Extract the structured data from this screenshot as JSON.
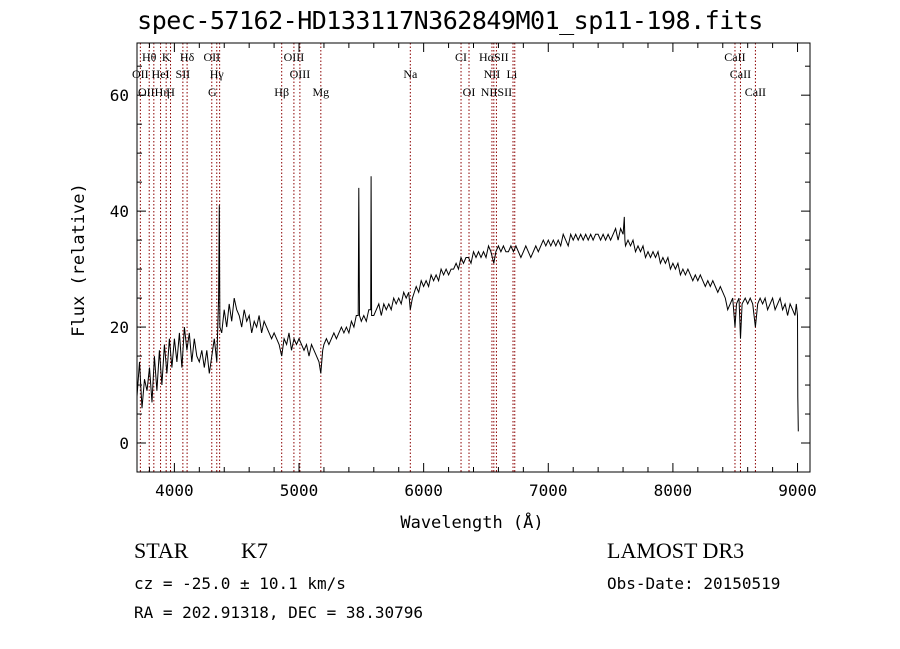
{
  "title": "spec-57162-HD133117N362849M01_sp11-198.fits",
  "chart_data": {
    "type": "line",
    "title": "spec-57162-HD133117N362849M01_sp11-198.fits",
    "xlabel": "Wavelength (Å)",
    "ylabel": "Flux (relative)",
    "xlim": [
      3700,
      9100
    ],
    "ylim": [
      -5,
      69
    ],
    "x_ticks": [
      4000,
      5000,
      6000,
      7000,
      8000,
      9000
    ],
    "y_ticks": [
      0,
      20,
      40,
      60
    ],
    "x_minor_step": 200,
    "y_minor_step": 5,
    "series": [
      {
        "name": "spectrum",
        "points": [
          [
            3700,
            8
          ],
          [
            3720,
            14
          ],
          [
            3740,
            6
          ],
          [
            3760,
            11
          ],
          [
            3780,
            9
          ],
          [
            3800,
            13
          ],
          [
            3820,
            7
          ],
          [
            3840,
            15
          ],
          [
            3860,
            9
          ],
          [
            3880,
            16
          ],
          [
            3900,
            10
          ],
          [
            3920,
            17
          ],
          [
            3940,
            12
          ],
          [
            3960,
            18
          ],
          [
            3980,
            13
          ],
          [
            4000,
            18
          ],
          [
            4020,
            14
          ],
          [
            4040,
            19
          ],
          [
            4060,
            13
          ],
          [
            4080,
            20
          ],
          [
            4100,
            16
          ],
          [
            4120,
            19
          ],
          [
            4140,
            14
          ],
          [
            4160,
            18
          ],
          [
            4180,
            15
          ],
          [
            4200,
            14
          ],
          [
            4220,
            16
          ],
          [
            4240,
            13
          ],
          [
            4260,
            16
          ],
          [
            4280,
            12
          ],
          [
            4300,
            15
          ],
          [
            4320,
            18
          ],
          [
            4340,
            14
          ],
          [
            4355,
            25
          ],
          [
            4360,
            41
          ],
          [
            4365,
            20
          ],
          [
            4380,
            19
          ],
          [
            4400,
            23
          ],
          [
            4420,
            20
          ],
          [
            4440,
            24
          ],
          [
            4460,
            21
          ],
          [
            4480,
            25
          ],
          [
            4500,
            23
          ],
          [
            4520,
            22
          ],
          [
            4540,
            20
          ],
          [
            4560,
            23
          ],
          [
            4580,
            21
          ],
          [
            4600,
            22
          ],
          [
            4620,
            19
          ],
          [
            4640,
            21
          ],
          [
            4660,
            20
          ],
          [
            4680,
            22
          ],
          [
            4700,
            19
          ],
          [
            4720,
            21
          ],
          [
            4740,
            20
          ],
          [
            4760,
            19
          ],
          [
            4780,
            18
          ],
          [
            4800,
            19
          ],
          [
            4820,
            18
          ],
          [
            4840,
            17
          ],
          [
            4861,
            15
          ],
          [
            4880,
            18
          ],
          [
            4900,
            17
          ],
          [
            4920,
            19
          ],
          [
            4940,
            16
          ],
          [
            4960,
            18
          ],
          [
            4980,
            17
          ],
          [
            5000,
            18
          ],
          [
            5020,
            17
          ],
          [
            5040,
            16
          ],
          [
            5060,
            17
          ],
          [
            5080,
            15
          ],
          [
            5100,
            17
          ],
          [
            5120,
            16
          ],
          [
            5140,
            15
          ],
          [
            5160,
            14
          ],
          [
            5175,
            12
          ],
          [
            5190,
            16
          ],
          [
            5200,
            17
          ],
          [
            5220,
            18
          ],
          [
            5240,
            17
          ],
          [
            5260,
            18
          ],
          [
            5280,
            19
          ],
          [
            5300,
            18
          ],
          [
            5320,
            19
          ],
          [
            5340,
            20
          ],
          [
            5360,
            19
          ],
          [
            5380,
            20
          ],
          [
            5400,
            19
          ],
          [
            5420,
            21
          ],
          [
            5440,
            20
          ],
          [
            5460,
            22
          ],
          [
            5475,
            22
          ],
          [
            5480,
            44
          ],
          [
            5485,
            22
          ],
          [
            5500,
            21
          ],
          [
            5520,
            22
          ],
          [
            5540,
            21
          ],
          [
            5560,
            23
          ],
          [
            5575,
            23
          ],
          [
            5578,
            46
          ],
          [
            5582,
            22
          ],
          [
            5600,
            22
          ],
          [
            5620,
            23
          ],
          [
            5640,
            24
          ],
          [
            5660,
            22
          ],
          [
            5680,
            24
          ],
          [
            5700,
            23
          ],
          [
            5720,
            24
          ],
          [
            5740,
            23
          ],
          [
            5760,
            25
          ],
          [
            5780,
            24
          ],
          [
            5800,
            25
          ],
          [
            5820,
            24
          ],
          [
            5840,
            26
          ],
          [
            5860,
            25
          ],
          [
            5880,
            26
          ],
          [
            5893,
            23
          ],
          [
            5910,
            25
          ],
          [
            5940,
            27
          ],
          [
            5960,
            26
          ],
          [
            5980,
            28
          ],
          [
            6000,
            27
          ],
          [
            6020,
            28
          ],
          [
            6040,
            27
          ],
          [
            6060,
            29
          ],
          [
            6080,
            28
          ],
          [
            6100,
            29
          ],
          [
            6120,
            28
          ],
          [
            6140,
            30
          ],
          [
            6160,
            29
          ],
          [
            6180,
            30
          ],
          [
            6200,
            29
          ],
          [
            6220,
            30
          ],
          [
            6240,
            30
          ],
          [
            6260,
            31
          ],
          [
            6280,
            30
          ],
          [
            6300,
            32
          ],
          [
            6320,
            31
          ],
          [
            6340,
            32
          ],
          [
            6360,
            32
          ],
          [
            6380,
            31
          ],
          [
            6400,
            33
          ],
          [
            6420,
            32
          ],
          [
            6440,
            33
          ],
          [
            6460,
            32
          ],
          [
            6480,
            33
          ],
          [
            6500,
            32
          ],
          [
            6520,
            34
          ],
          [
            6540,
            33
          ],
          [
            6563,
            31
          ],
          [
            6580,
            33
          ],
          [
            6600,
            34
          ],
          [
            6620,
            33
          ],
          [
            6640,
            34
          ],
          [
            6660,
            33
          ],
          [
            6680,
            33
          ],
          [
            6700,
            34
          ],
          [
            6720,
            33
          ],
          [
            6740,
            34
          ],
          [
            6760,
            33
          ],
          [
            6780,
            32
          ],
          [
            6800,
            33
          ],
          [
            6820,
            34
          ],
          [
            6840,
            33
          ],
          [
            6860,
            32
          ],
          [
            6880,
            33
          ],
          [
            6900,
            34
          ],
          [
            6920,
            33
          ],
          [
            6940,
            34
          ],
          [
            6960,
            35
          ],
          [
            6980,
            34
          ],
          [
            7000,
            35
          ],
          [
            7020,
            34
          ],
          [
            7040,
            35
          ],
          [
            7060,
            34
          ],
          [
            7080,
            35
          ],
          [
            7100,
            34
          ],
          [
            7120,
            36
          ],
          [
            7140,
            35
          ],
          [
            7160,
            34
          ],
          [
            7180,
            36
          ],
          [
            7200,
            35
          ],
          [
            7220,
            36
          ],
          [
            7240,
            35
          ],
          [
            7260,
            36
          ],
          [
            7280,
            35
          ],
          [
            7300,
            36
          ],
          [
            7320,
            35
          ],
          [
            7340,
            36
          ],
          [
            7360,
            35
          ],
          [
            7380,
            36
          ],
          [
            7400,
            36
          ],
          [
            7420,
            35
          ],
          [
            7440,
            36
          ],
          [
            7460,
            35
          ],
          [
            7480,
            36
          ],
          [
            7500,
            35
          ],
          [
            7520,
            36
          ],
          [
            7540,
            37
          ],
          [
            7560,
            35
          ],
          [
            7580,
            37
          ],
          [
            7600,
            36
          ],
          [
            7610,
            39
          ],
          [
            7615,
            35
          ],
          [
            7620,
            34
          ],
          [
            7640,
            35
          ],
          [
            7660,
            34
          ],
          [
            7680,
            35
          ],
          [
            7700,
            33
          ],
          [
            7720,
            34
          ],
          [
            7740,
            33
          ],
          [
            7760,
            34
          ],
          [
            7780,
            32
          ],
          [
            7800,
            33
          ],
          [
            7820,
            32
          ],
          [
            7840,
            33
          ],
          [
            7860,
            32
          ],
          [
            7880,
            33
          ],
          [
            7900,
            31
          ],
          [
            7920,
            32
          ],
          [
            7940,
            31
          ],
          [
            7960,
            32
          ],
          [
            7980,
            30
          ],
          [
            8000,
            31
          ],
          [
            8020,
            30
          ],
          [
            8040,
            31
          ],
          [
            8060,
            29
          ],
          [
            8080,
            30
          ],
          [
            8100,
            29
          ],
          [
            8120,
            30
          ],
          [
            8140,
            29
          ],
          [
            8160,
            28
          ],
          [
            8180,
            29
          ],
          [
            8200,
            28
          ],
          [
            8220,
            29
          ],
          [
            8240,
            28
          ],
          [
            8260,
            27
          ],
          [
            8280,
            28
          ],
          [
            8300,
            27
          ],
          [
            8320,
            28
          ],
          [
            8340,
            27
          ],
          [
            8360,
            26
          ],
          [
            8380,
            27
          ],
          [
            8400,
            26
          ],
          [
            8420,
            25
          ],
          [
            8440,
            23
          ],
          [
            8460,
            24
          ],
          [
            8480,
            25
          ],
          [
            8498,
            20
          ],
          [
            8510,
            24
          ],
          [
            8530,
            25
          ],
          [
            8542,
            18
          ],
          [
            8555,
            24
          ],
          [
            8580,
            25
          ],
          [
            8600,
            24
          ],
          [
            8620,
            25
          ],
          [
            8640,
            24
          ],
          [
            8662,
            20
          ],
          [
            8680,
            24
          ],
          [
            8700,
            25
          ],
          [
            8720,
            24
          ],
          [
            8740,
            25
          ],
          [
            8760,
            23
          ],
          [
            8780,
            24
          ],
          [
            8800,
            25
          ],
          [
            8820,
            23
          ],
          [
            8840,
            24
          ],
          [
            8860,
            25
          ],
          [
            8880,
            23
          ],
          [
            8900,
            24
          ],
          [
            8920,
            22
          ],
          [
            8940,
            24
          ],
          [
            8960,
            23
          ],
          [
            8980,
            22
          ],
          [
            8990,
            24
          ],
          [
            9000,
            22
          ],
          [
            9002,
            8
          ],
          [
            9006,
            2
          ]
        ]
      }
    ],
    "lines_top": [
      {
        "label": "Hθ",
        "x": 3798
      },
      {
        "label": "K",
        "x": 3934
      },
      {
        "label": "Hδ",
        "x": 4102
      },
      {
        "label": "OII",
        "x": 4300
      },
      {
        "label": "OIII",
        "x": 4959
      },
      {
        "label": "CI",
        "x": 6300
      },
      {
        "label": "HαSII",
        "x": 6563
      },
      {
        "label": "CaII",
        "x": 8498
      }
    ],
    "lines_middle": [
      {
        "label": "OII",
        "x": 3727
      },
      {
        "label": "HeI",
        "x": 3889
      },
      {
        "label": "SII",
        "x": 4068
      },
      {
        "label": "Hγ",
        "x": 4340
      },
      {
        "label": "OIII",
        "x": 5007
      },
      {
        "label": "Na",
        "x": 5893
      },
      {
        "label": "NII",
        "x": 6548
      },
      {
        "label": "Li",
        "x": 6708
      },
      {
        "label": "CaII",
        "x": 8542
      }
    ],
    "lines_bottom": [
      {
        "label": "OIIHη",
        "x": 3835
      },
      {
        "label": "H",
        "x": 3969
      },
      {
        "label": "G",
        "x": 4304
      },
      {
        "label": "Hβ",
        "x": 4861
      },
      {
        "label": "Mg",
        "x": 5175
      },
      {
        "label": "OI",
        "x": 6364
      },
      {
        "label": "NIISII",
        "x": 6584
      },
      {
        "label": "CaII",
        "x": 8662
      }
    ],
    "marker_positions": [
      3727,
      3798,
      3835,
      3889,
      3934,
      3969,
      4068,
      4102,
      4300,
      4340,
      4363,
      4861,
      4959,
      5007,
      5175,
      5893,
      6300,
      6364,
      6548,
      6563,
      6584,
      6717,
      6731,
      8498,
      8542,
      8662
    ]
  },
  "info": {
    "object_class": "STAR",
    "subclass": "K7",
    "survey": "LAMOST DR3",
    "cz": "cz = -25.0 ± 10.1 km/s",
    "obs_date": "Obs-Date: 20150519",
    "coords": "RA = 202.91318, DEC =  38.30796"
  },
  "colors": {
    "spectrum": "#000000",
    "marker_line": "#8b0000",
    "axes": "#000000"
  }
}
